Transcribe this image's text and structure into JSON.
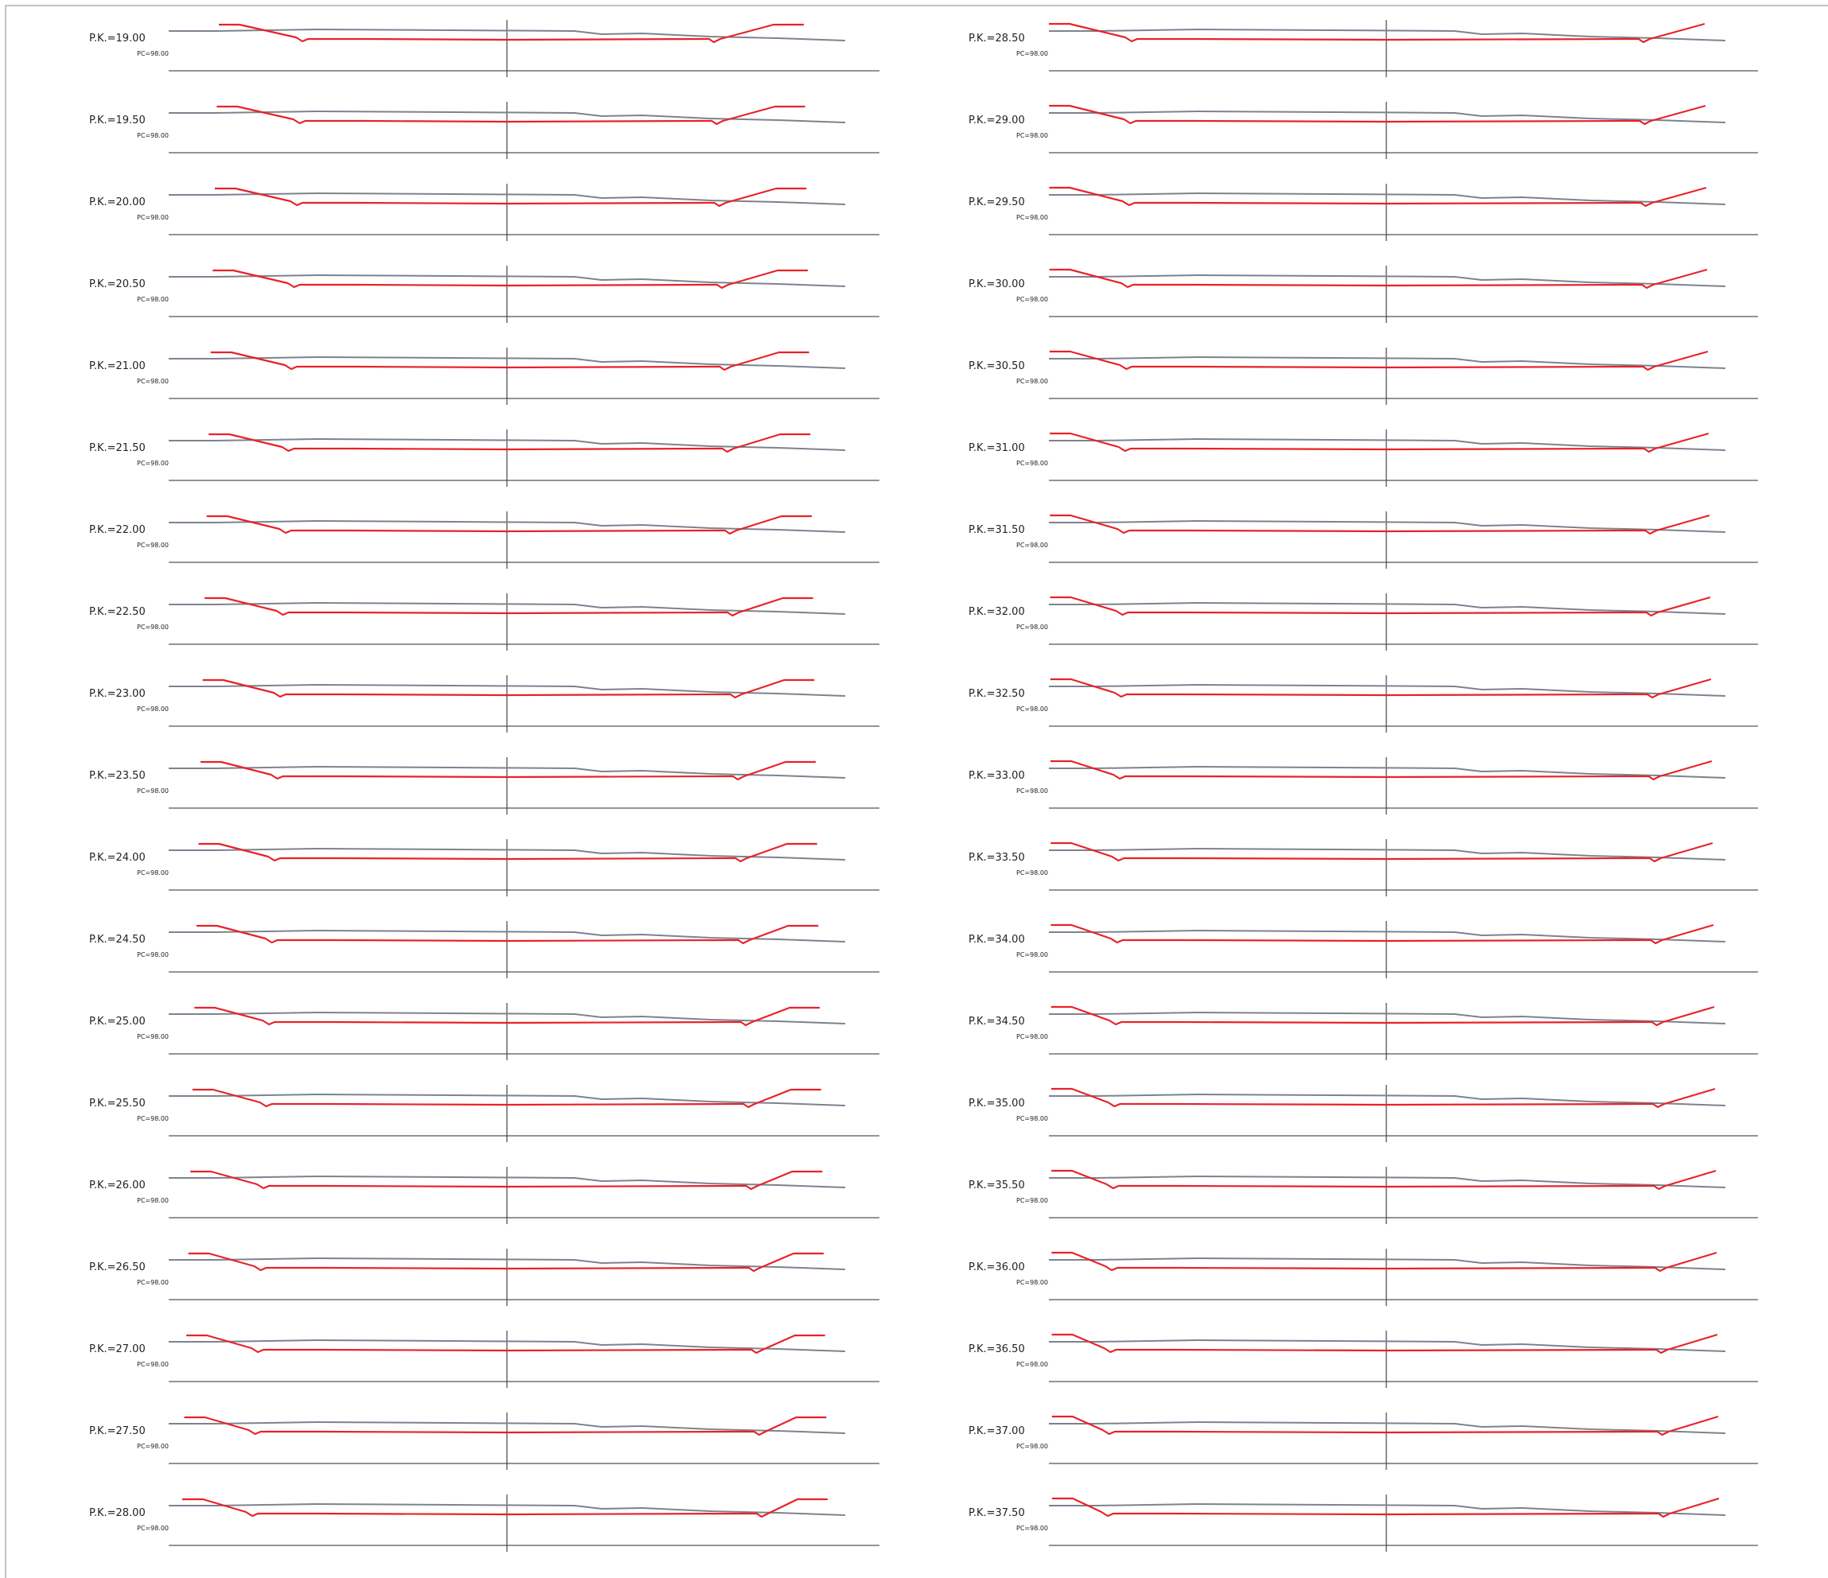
{
  "sheet": {
    "colors": {
      "design_line": "#e8222a",
      "terrain_line": "#7d8290",
      "datum_line": "#555555",
      "axis_line": "#444444",
      "frame": "#888888"
    }
  },
  "columns": [
    {
      "sections": [
        {
          "pk": "P.K.=19.00",
          "pc": "PC=98.00"
        },
        {
          "pk": "P.K.=19.50",
          "pc": "PC=98.00"
        },
        {
          "pk": "P.K.=20.00",
          "pc": "PC=98.00"
        },
        {
          "pk": "P.K.=20.50",
          "pc": "PC=98.00"
        },
        {
          "pk": "P.K.=21.00",
          "pc": "PC=98.00"
        },
        {
          "pk": "P.K.=21.50",
          "pc": "PC=98.00"
        },
        {
          "pk": "P.K.=22.00",
          "pc": "PC=98.00"
        },
        {
          "pk": "P.K.=22.50",
          "pc": "PC=98.00"
        },
        {
          "pk": "P.K.=23.00",
          "pc": "PC=98.00"
        },
        {
          "pk": "P.K.=23.50",
          "pc": "PC=98.00"
        },
        {
          "pk": "P.K.=24.00",
          "pc": "PC=98.00"
        },
        {
          "pk": "P.K.=24.50",
          "pc": "PC=98.00"
        },
        {
          "pk": "P.K.=25.00",
          "pc": "PC=98.00"
        },
        {
          "pk": "P.K.=25.50",
          "pc": "PC=98.00"
        },
        {
          "pk": "P.K.=26.00",
          "pc": "PC=98.00"
        },
        {
          "pk": "P.K.=26.50",
          "pc": "PC=98.00"
        },
        {
          "pk": "P.K.=27.00",
          "pc": "PC=98.00"
        },
        {
          "pk": "P.K.=27.50",
          "pc": "PC=98.00"
        },
        {
          "pk": "P.K.=28.00",
          "pc": "PC=98.00"
        }
      ]
    },
    {
      "sections": [
        {
          "pk": "P.K.=28.50",
          "pc": "PC=98.00"
        },
        {
          "pk": "P.K.=29.00",
          "pc": "PC=98.00"
        },
        {
          "pk": "P.K.=29.50",
          "pc": "PC=98.00"
        },
        {
          "pk": "P.K.=30.00",
          "pc": "PC=98.00"
        },
        {
          "pk": "P.K.=30.50",
          "pc": "PC=98.00"
        },
        {
          "pk": "P.K.=31.00",
          "pc": "PC=98.00"
        },
        {
          "pk": "P.K.=31.50",
          "pc": "PC=98.00"
        },
        {
          "pk": "P.K.=32.00",
          "pc": "PC=98.00"
        },
        {
          "pk": "P.K.=32.50",
          "pc": "PC=98.00"
        },
        {
          "pk": "P.K.=33.00",
          "pc": "PC=98.00"
        },
        {
          "pk": "P.K.=33.50",
          "pc": "PC=98.00"
        },
        {
          "pk": "P.K.=34.00",
          "pc": "PC=98.00"
        },
        {
          "pk": "P.K.=34.50",
          "pc": "PC=98.00"
        },
        {
          "pk": "P.K.=35.00",
          "pc": "PC=98.00"
        },
        {
          "pk": "P.K.=35.50",
          "pc": "PC=98.00"
        },
        {
          "pk": "P.K.=36.00",
          "pc": "PC=98.00"
        },
        {
          "pk": "P.K.=36.50",
          "pc": "PC=98.00"
        },
        {
          "pk": "P.K.=37.00",
          "pc": "PC=98.00"
        },
        {
          "pk": "P.K.=37.50",
          "pc": "PC=98.00"
        }
      ]
    }
  ]
}
